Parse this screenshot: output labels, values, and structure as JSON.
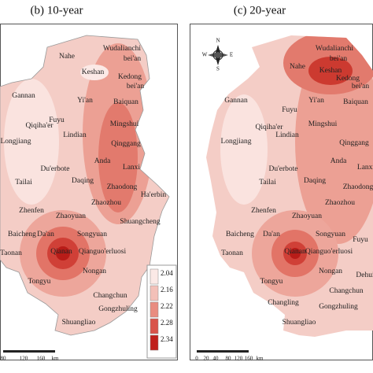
{
  "panels": [
    {
      "title": "(b) 10-year",
      "places": [
        "Wudalianchi",
        "bei'an",
        "Nahe",
        "Keshan",
        "Kedong",
        "bei'an",
        "Gannan",
        "Yi'an",
        "Baiquan",
        "Fuyu",
        "Qiqiha'er",
        "Mingshui",
        "Lindian",
        "Longjiang",
        "Qinggang",
        "Anda",
        "Du'erbote",
        "Lanxi",
        "Tailai",
        "Daqing",
        "Zhaodong",
        "Ha'erbin",
        "Zhaozhou",
        "Zhenfen",
        "Zhaoyuan",
        "Shuangcheng",
        "Baicheng",
        "Da'an",
        "Songyuan",
        "Taonan",
        "Qianan",
        "Qianguo'erluosi",
        "Nongan",
        "Tongyu",
        "Changchun",
        "Gongzhuling",
        "Shuangliao"
      ],
      "scale": [
        "80",
        "120",
        "160",
        "km"
      ],
      "legend": {
        "values": [
          2.04,
          2.16,
          2.22,
          2.28,
          2.34
        ],
        "colors": [
          "#fbe9e6",
          "#f3c0b8",
          "#e98c80",
          "#d9534a",
          "#c0201c"
        ]
      }
    },
    {
      "title": "(c) 20-year",
      "places": [
        "Wudalianchi",
        "bei'an",
        "Nahe",
        "Keshan",
        "Kedong",
        "bei'an",
        "Gannan",
        "Fuyu",
        "Yi'an",
        "Baiquan",
        "Qiqiha'er",
        "Mingshui",
        "Longjiang",
        "Lindian",
        "Qinggang",
        "Anda",
        "Du'erbote",
        "Lanxi",
        "Tailai",
        "Daqing",
        "Zhaodong",
        "Zhenfen",
        "Zhaoyuan",
        "Zhaozhou",
        "Baicheng",
        "Da'an",
        "Songyuan",
        "Fuyu",
        "Taonan",
        "Qianan",
        "Qianguo'erluosi",
        "Nongan",
        "Dehui",
        "Tongyu",
        "Changchun",
        "Changling",
        "Gongzhuling",
        "Shuangliao"
      ],
      "scale": [
        "0",
        "20",
        "40",
        "80",
        "120",
        "160",
        "km"
      ],
      "compass": [
        "N",
        "E",
        "S",
        "W"
      ]
    }
  ]
}
